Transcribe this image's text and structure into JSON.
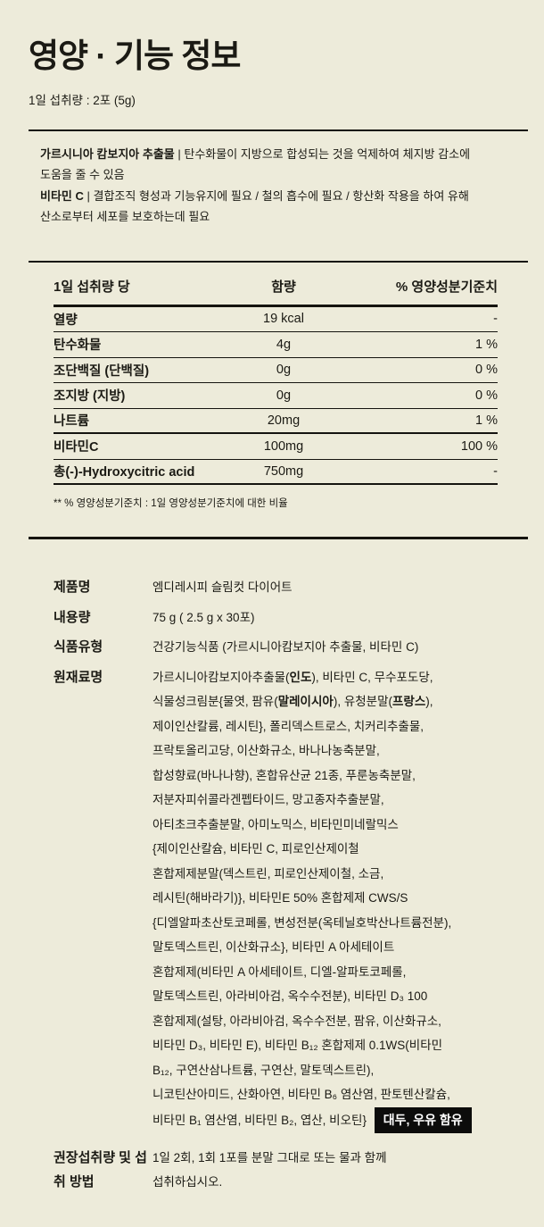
{
  "colors": {
    "background": "#EDEBDA",
    "text": "#1B1A14",
    "line": "#15140F",
    "badge_bg": "#0C0C0B",
    "badge_text": "#FFFFFF"
  },
  "page": {
    "title": "영양 · 기능 정보",
    "subtitle": "1일 섭취량 : 2포 (5g)"
  },
  "function_info": {
    "items": [
      {
        "runs": [
          {
            "t": "가르시니아 캄보지아 추출물",
            "b": true
          },
          {
            "t": " | "
          },
          {
            "t": "탄수화물이 지방으로 합성되는 것을 억제하여 체지방 감소에\n도움을 줄 수 있음"
          }
        ]
      },
      {
        "runs": [
          {
            "t": "비타민 C",
            "b": true
          },
          {
            "t": " | "
          },
          {
            "t": "결합조직 형성과 기능유지에 필요 / 철의 흡수에 필요 / 항산화 작용을 하여 유해\n산소로부터 세포를 보호하는데 필요"
          }
        ]
      }
    ]
  },
  "nutrition_table": {
    "columns": [
      "1일 섭취량 당",
      "함량",
      "% 영양성분기준치"
    ],
    "rows": [
      {
        "label": "열량",
        "amount": "19 kcal",
        "pct": "-"
      },
      {
        "label": "탄수화물",
        "amount": "4g",
        "pct": "1 %"
      },
      {
        "label": "조단백질 (단백질)",
        "amount": "0g",
        "pct": "0 %"
      },
      {
        "label": "조지방 (지방)",
        "amount": "0g",
        "pct": "0 %"
      },
      {
        "label": "나트륨",
        "amount": "20mg",
        "pct": "1 %"
      },
      {
        "label": "비타민C",
        "amount": "100mg",
        "pct": "100 %"
      },
      {
        "label": "총(-)-Hydroxycitric acid",
        "amount": "750mg",
        "pct": "-"
      }
    ],
    "footnote": "** % 영양성분기준치 : 1일 영양성분기준치에 대한 비율"
  },
  "details": {
    "rows": [
      {
        "label": "제품명",
        "value": "엠디레시피 슬림컷 다이어트"
      },
      {
        "label": "내용량",
        "value": "75 g ( 2.5 g x 30포)"
      },
      {
        "label": "식품유형",
        "value": "건강기능식품 (가르시니아캄보지아 추출물, 비타민 C)"
      },
      {
        "label": "원재료명",
        "runs": [
          {
            "t": "가르시니아캄보지아추출물("
          },
          {
            "t": "인도",
            "b": true
          },
          {
            "t": "), 비타민 C, 무수포도당,\n식물성크림분{물엿, 팜유("
          },
          {
            "t": "말레이시아",
            "b": true
          },
          {
            "t": "), 유청분말("
          },
          {
            "t": "프랑스",
            "b": true
          },
          {
            "t": "),\n제이인산칼륨, 레시틴}, 폴리덱스트로스, 치커리추출물,\n프락토올리고당, 이산화규소, 바나나농축분말,\n합성향료(바나나향), 혼합유산균 21종, 푸룬농축분말,\n저분자피쉬콜라겐펩타이드, 망고종자추출분말,\n아티초크추출분말, 아미노믹스, 비타민미네랄믹스\n{제이인산칼슘, 비타민 C, 피로인산제이철\n혼합제제분말(덱스트린, 피로인산제이철, 소금,\n레시틴(해바라기)}, 비타민E 50% 혼합제제 CWS/S\n{디엘알파초산토코페롤, 변성전분(옥테닐호박산나트륨전분),\n말토덱스트린, 이산화규소}, 비타민 A 아세테이트\n혼합제제(비타민 A 아세테이트, 디엘-알파토코페롤,\n말토덱스트린, 아라비아검, 옥수수전분), 비타민 D₃ 100\n혼합제제(설탕, 아라비아검, 옥수수전분, 팜유, 이산화규소,\n비타민 D₃, 비타민 E), 비타민 B₁₂ 혼합제제 0.1WS(비타민\nB₁₂, 구연산삼나트륨, 구연산, 말토덱스트린),\n니코틴산아미드, 산화아연, 비타민 B₆ 염산염, 판토텐산칼슘,\n비타민 B₁ 염산염, 비타민 B₂, 엽산, 비오틴} "
          }
        ],
        "badge": "대두, 우유 함유"
      },
      {
        "label": "권장섭취량 및 섭취 방법",
        "value": "1일 2회, 1회 1포를 분말 그대로 또는 물과 함께\n섭취하십시오."
      }
    ]
  }
}
